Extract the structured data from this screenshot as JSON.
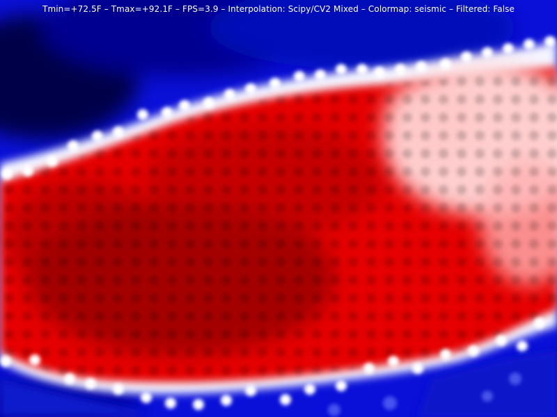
{
  "status": {
    "tmin": "Tmin=+72.5F",
    "tmax": "Tmax=+92.1F",
    "fps": "FPS=3.9",
    "interpolation": "Interpolation: Scipy/CV2 Mixed",
    "colormap": "Colormap: seismic",
    "filtered": "Filtered: False",
    "separator": " – "
  },
  "colors": {
    "cold": "#0000d8",
    "mid": "#ffffff",
    "hot": "#e80000",
    "hottest": "#7a0000",
    "coldest": "#00004a"
  }
}
